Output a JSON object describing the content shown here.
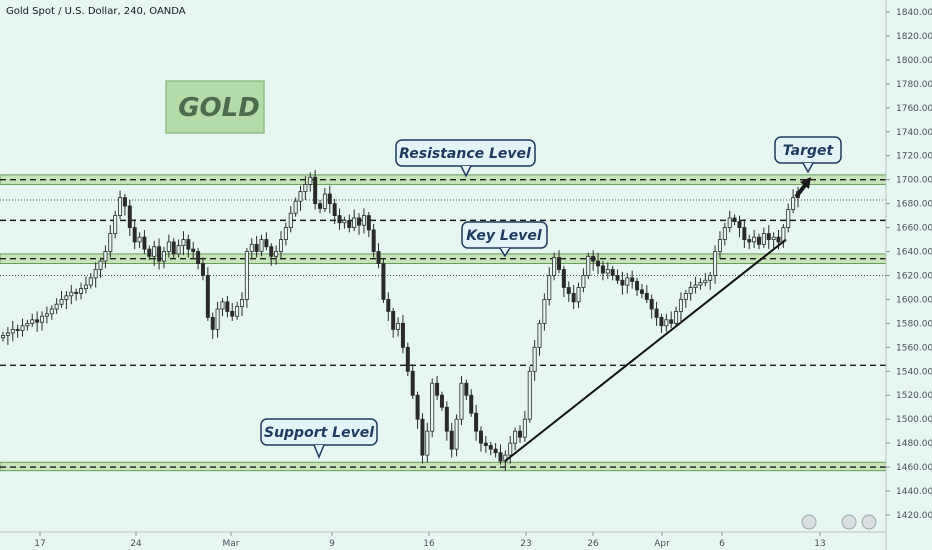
{
  "header": {
    "title": "Gold Spot / U.S. Dollar, 240, OANDA"
  },
  "colors": {
    "background": "#e6f7f1",
    "zone_fill": "#c5e4b8",
    "zone_stroke": "#6a9a5a",
    "callout_fill": "#e3f4f7",
    "callout_stroke": "#1f3a5f",
    "gold_box_fill": "#b5dba9",
    "candle": "#2a2a2a"
  },
  "chart_data": {
    "type": "candlestick",
    "title": "Gold Spot / U.S. Dollar, 240, OANDA",
    "ylim": [
      1410,
      1850
    ],
    "y_ticks": [
      1420,
      1440,
      1460,
      1480,
      1500,
      1520,
      1540,
      1560,
      1580,
      1600,
      1620,
      1640,
      1660,
      1680,
      1700,
      1720,
      1740,
      1760,
      1780,
      1800,
      1820,
      1840
    ],
    "x_ticks": [
      "17",
      "24",
      "Mar",
      "9",
      "16",
      "23",
      "26",
      "Apr",
      "6",
      "13"
    ],
    "grid": false,
    "zones": [
      {
        "name": "resistance",
        "low": 1696,
        "high": 1704
      },
      {
        "name": "key",
        "low": 1630,
        "high": 1638
      },
      {
        "name": "support",
        "low": 1457,
        "high": 1464
      }
    ],
    "lines": [
      {
        "level": 1666,
        "style": "dashed"
      },
      {
        "level": 1545,
        "style": "dashed"
      },
      {
        "level": 1683,
        "style": "dotted"
      },
      {
        "level": 1620,
        "style": "dotted"
      },
      {
        "level": 1700,
        "style": "dashed"
      },
      {
        "level": 1634,
        "style": "dashed"
      },
      {
        "level": 1460,
        "style": "dashed"
      }
    ],
    "annotations": [
      {
        "id": "gold",
        "text": "GOLD"
      },
      {
        "id": "resistance",
        "text": "Resistance Level"
      },
      {
        "id": "key",
        "text": "Key Level"
      },
      {
        "id": "support",
        "text": "Support Level"
      },
      {
        "id": "target",
        "text": "Target"
      }
    ],
    "trendline": {
      "from": [
        "23",
        1465
      ],
      "to": [
        "Apr 9",
        1650
      ]
    },
    "closes": [
      1570,
      1572,
      1575,
      1574,
      1578,
      1580,
      1583,
      1581,
      1586,
      1588,
      1592,
      1596,
      1600,
      1603,
      1606,
      1605,
      1609,
      1612,
      1618,
      1625,
      1632,
      1640,
      1655,
      1670,
      1685,
      1678,
      1660,
      1648,
      1652,
      1642,
      1636,
      1644,
      1632,
      1640,
      1648,
      1638,
      1645,
      1650,
      1642,
      1640,
      1630,
      1620,
      1585,
      1575,
      1592,
      1598,
      1590,
      1586,
      1594,
      1600,
      1640,
      1646,
      1640,
      1650,
      1644,
      1636,
      1640,
      1650,
      1660,
      1672,
      1682,
      1690,
      1696,
      1702,
      1680,
      1676,
      1688,
      1680,
      1670,
      1664,
      1666,
      1660,
      1668,
      1662,
      1670,
      1658,
      1640,
      1630,
      1600,
      1590,
      1575,
      1580,
      1560,
      1540,
      1520,
      1500,
      1470,
      1490,
      1530,
      1520,
      1510,
      1490,
      1475,
      1500,
      1530,
      1520,
      1505,
      1490,
      1480,
      1478,
      1475,
      1472,
      1465,
      1470,
      1480,
      1490,
      1485,
      1500,
      1540,
      1560,
      1580,
      1600,
      1620,
      1635,
      1625,
      1610,
      1605,
      1598,
      1610,
      1620,
      1636,
      1632,
      1628,
      1622,
      1625,
      1620,
      1616,
      1612,
      1618,
      1615,
      1608,
      1605,
      1600,
      1592,
      1585,
      1578,
      1583,
      1580,
      1590,
      1600,
      1605,
      1610,
      1612,
      1614,
      1616,
      1620,
      1640,
      1650,
      1660,
      1668,
      1665,
      1660,
      1650,
      1648,
      1652,
      1646,
      1655,
      1650,
      1652,
      1648,
      1660,
      1675,
      1685,
      1690
    ]
  }
}
